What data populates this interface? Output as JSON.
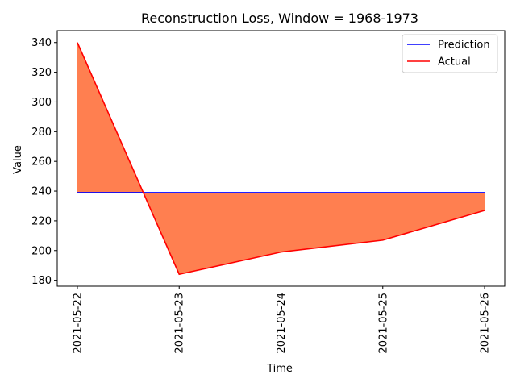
{
  "chart_data": {
    "type": "line",
    "title": "Reconstruction Loss, Window = 1968-1973",
    "xlabel": "Time",
    "ylabel": "Value",
    "categories": [
      "2021-05-22",
      "2021-05-23",
      "2021-05-24",
      "2021-05-25",
      "2021-05-26"
    ],
    "series": [
      {
        "name": "Prediction",
        "color": "#0000ff",
        "values": [
          239,
          239,
          239,
          239,
          239
        ]
      },
      {
        "name": "Actual",
        "color": "#ff0000",
        "values": [
          340,
          184,
          199,
          207,
          227
        ]
      }
    ],
    "fill_between": {
      "color": "#ff7f50",
      "between": [
        "Prediction",
        "Actual"
      ]
    },
    "ylim": [
      176,
      348
    ],
    "yticks": [
      180,
      200,
      220,
      240,
      260,
      280,
      300,
      320,
      340
    ],
    "x_tick_rotation": 90,
    "grid": false,
    "legend": "top-right"
  }
}
